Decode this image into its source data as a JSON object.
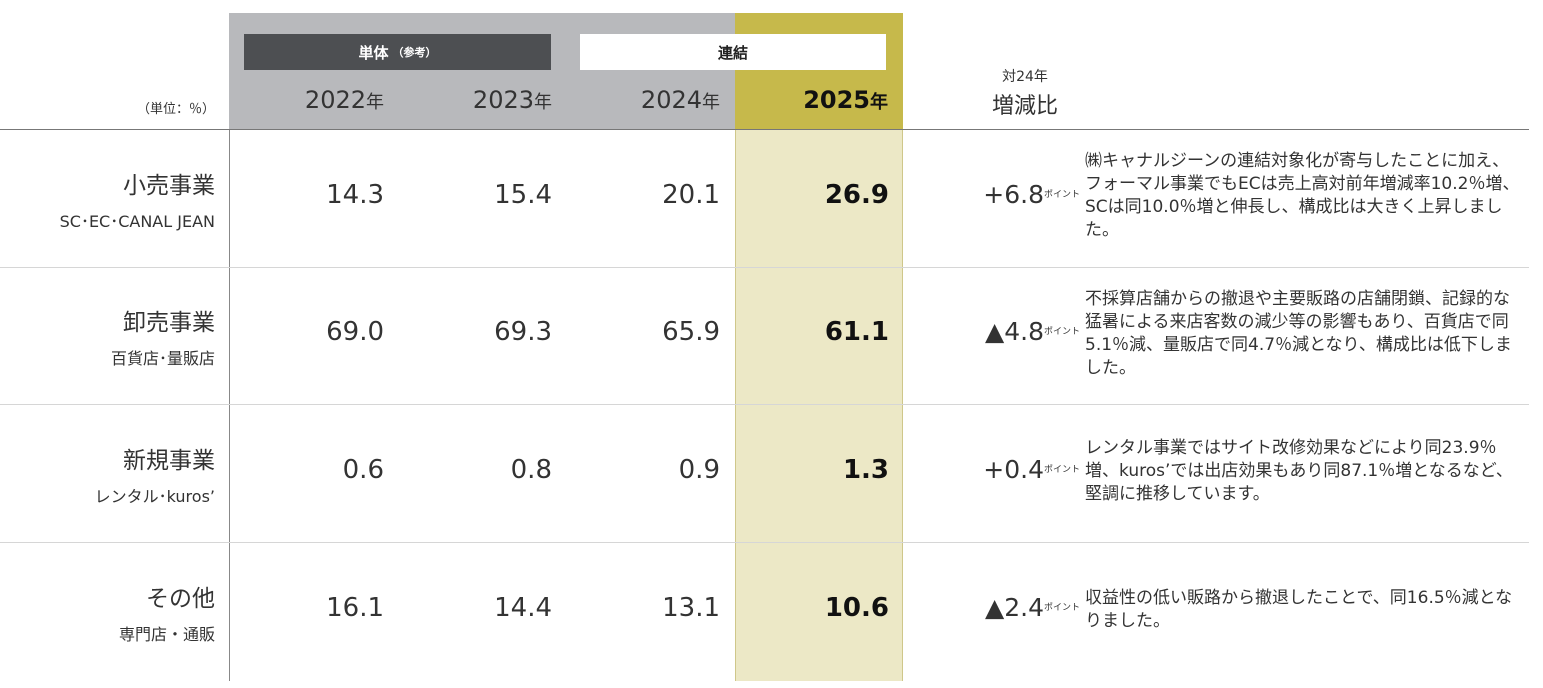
{
  "header": {
    "unit_label": "（単位：％）",
    "standalone_label": "単体",
    "standalone_note": "（参考）",
    "consolidated_label": "連結",
    "years": [
      {
        "year": "2022",
        "suffix": "年"
      },
      {
        "year": "2023",
        "suffix": "年"
      },
      {
        "year": "2024",
        "suffix": "年"
      },
      {
        "year": "2025",
        "suffix": "年"
      }
    ],
    "compare_top": "対24年",
    "compare_bottom": "増減比"
  },
  "point_unit": "ポイント",
  "rows": [
    {
      "name": "小売事業",
      "sub": "SC･EC･CANAL JEAN",
      "values": [
        "14.3",
        "15.4",
        "20.1",
        "26.9"
      ],
      "change": "+6.8",
      "note": "㈱キャナルジーンの連結対象化が寄与したことに加え、フォーマル事業でもECは売上高対前年増減率10.2％増、SCは同10.0％増と伸長し、構成比は大きく上昇しました。"
    },
    {
      "name": "卸売事業",
      "sub": "百貨店･量販店",
      "values": [
        "69.0",
        "69.3",
        "65.9",
        "61.1"
      ],
      "change": "▲4.8",
      "note": "不採算店舗からの撤退や主要販路の店舗閉鎖、記録的な猛暑による来店客数の減少等の影響もあり、百貨店で同5.1％減、量販店で同4.7％減となり、構成比は低下しました。"
    },
    {
      "name": "新規事業",
      "sub": "レンタル･kuros’",
      "values": [
        "0.6",
        "0.8",
        "0.9",
        "1.3"
      ],
      "change": "+0.4",
      "note": "レンタル事業ではサイト改修効果などにより同23.9％増、kuros’では出店効果もあり同87.1％増となるなど、堅調に推移しています。"
    },
    {
      "name": "その他",
      "sub": "専門店・通販",
      "values": [
        "16.1",
        "14.4",
        "13.1",
        "10.6"
      ],
      "change": "▲2.4",
      "note": "収益性の低い販路から撤退したことで、同16.5％減となりました。"
    }
  ],
  "colors": {
    "header_gray": "#b8b9bc",
    "header_dark": "#4d4f52",
    "highlight_gold": "#c6b94b",
    "highlight_light": "#ece8c6"
  }
}
